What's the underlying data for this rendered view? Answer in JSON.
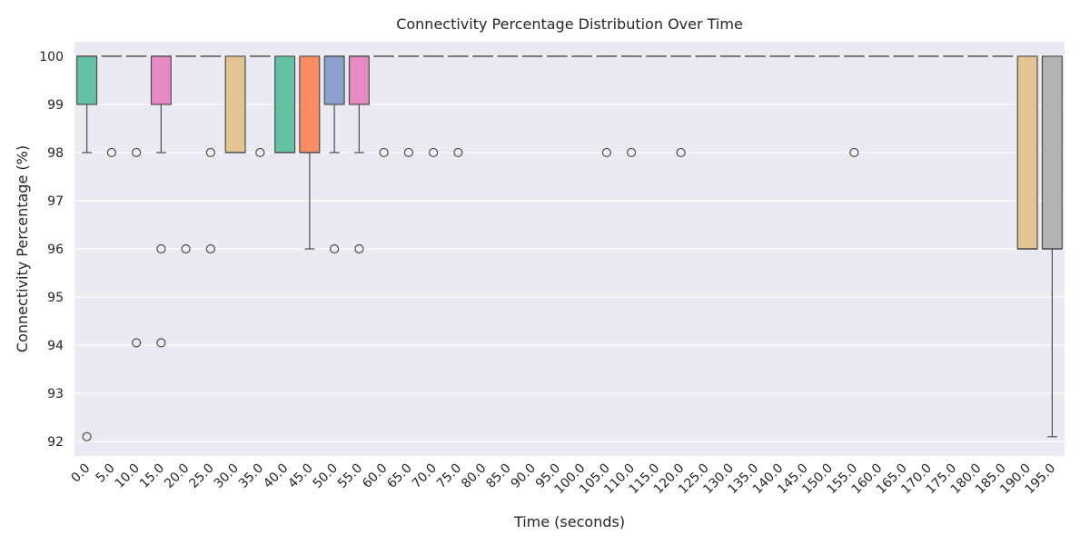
{
  "chart_data": {
    "type": "box",
    "title": "Connectivity Percentage Distribution Over Time",
    "xlabel": "Time (seconds)",
    "ylabel": "Connectivity Percentage (%)",
    "categories": [
      "0.0",
      "5.0",
      "10.0",
      "15.0",
      "20.0",
      "25.0",
      "30.0",
      "35.0",
      "40.0",
      "45.0",
      "50.0",
      "55.0",
      "60.0",
      "65.0",
      "70.0",
      "75.0",
      "80.0",
      "85.0",
      "90.0",
      "95.0",
      "100.0",
      "105.0",
      "110.0",
      "115.0",
      "120.0",
      "125.0",
      "130.0",
      "135.0",
      "140.0",
      "145.0",
      "150.0",
      "155.0",
      "160.0",
      "165.0",
      "170.0",
      "175.0",
      "180.0",
      "185.0",
      "190.0",
      "195.0"
    ],
    "ylim": [
      91.7,
      100.3
    ],
    "yticks": [
      92,
      93,
      94,
      95,
      96,
      97,
      98,
      99,
      100
    ],
    "grid": true,
    "palette": [
      "#66c2a5",
      "#fc8d62",
      "#8da0cb",
      "#e78ac3",
      "#a6d854",
      "#ffd92f",
      "#e5c494",
      "#b3b3b3"
    ],
    "boxes": [
      {
        "q1": 99,
        "median": 100,
        "q3": 100,
        "whislo": 98,
        "whishi": 100,
        "fliers": [
          92.1
        ]
      },
      {
        "q1": 100,
        "median": 100,
        "q3": 100,
        "whislo": 100,
        "whishi": 100,
        "fliers": [
          98
        ]
      },
      {
        "q1": 100,
        "median": 100,
        "q3": 100,
        "whislo": 100,
        "whishi": 100,
        "fliers": [
          98,
          94.05
        ]
      },
      {
        "q1": 99,
        "median": 100,
        "q3": 100,
        "whislo": 98,
        "whishi": 100,
        "fliers": [
          96,
          94.05
        ]
      },
      {
        "q1": 100,
        "median": 100,
        "q3": 100,
        "whislo": 100,
        "whishi": 100,
        "fliers": [
          96
        ]
      },
      {
        "q1": 100,
        "median": 100,
        "q3": 100,
        "whislo": 100,
        "whishi": 100,
        "fliers": [
          98,
          96
        ]
      },
      {
        "q1": 98,
        "median": 98,
        "q3": 100,
        "whislo": 98,
        "whishi": 100,
        "fliers": []
      },
      {
        "q1": 100,
        "median": 100,
        "q3": 100,
        "whislo": 100,
        "whishi": 100,
        "fliers": [
          98
        ]
      },
      {
        "q1": 98,
        "median": 98,
        "q3": 100,
        "whislo": 98,
        "whishi": 100,
        "fliers": []
      },
      {
        "q1": 98,
        "median": 98,
        "q3": 100,
        "whislo": 96,
        "whishi": 100,
        "fliers": []
      },
      {
        "q1": 99,
        "median": 100,
        "q3": 100,
        "whislo": 98,
        "whishi": 100,
        "fliers": [
          96
        ]
      },
      {
        "q1": 99,
        "median": 100,
        "q3": 100,
        "whislo": 98,
        "whishi": 100,
        "fliers": [
          96
        ]
      },
      {
        "q1": 100,
        "median": 100,
        "q3": 100,
        "whislo": 100,
        "whishi": 100,
        "fliers": [
          98
        ]
      },
      {
        "q1": 100,
        "median": 100,
        "q3": 100,
        "whislo": 100,
        "whishi": 100,
        "fliers": [
          98
        ]
      },
      {
        "q1": 100,
        "median": 100,
        "q3": 100,
        "whislo": 100,
        "whishi": 100,
        "fliers": [
          98
        ]
      },
      {
        "q1": 100,
        "median": 100,
        "q3": 100,
        "whislo": 100,
        "whishi": 100,
        "fliers": [
          98
        ]
      },
      {
        "q1": 100,
        "median": 100,
        "q3": 100,
        "whislo": 100,
        "whishi": 100,
        "fliers": []
      },
      {
        "q1": 100,
        "median": 100,
        "q3": 100,
        "whislo": 100,
        "whishi": 100,
        "fliers": []
      },
      {
        "q1": 100,
        "median": 100,
        "q3": 100,
        "whislo": 100,
        "whishi": 100,
        "fliers": []
      },
      {
        "q1": 100,
        "median": 100,
        "q3": 100,
        "whislo": 100,
        "whishi": 100,
        "fliers": []
      },
      {
        "q1": 100,
        "median": 100,
        "q3": 100,
        "whislo": 100,
        "whishi": 100,
        "fliers": []
      },
      {
        "q1": 100,
        "median": 100,
        "q3": 100,
        "whislo": 100,
        "whishi": 100,
        "fliers": [
          98
        ]
      },
      {
        "q1": 100,
        "median": 100,
        "q3": 100,
        "whislo": 100,
        "whishi": 100,
        "fliers": [
          98
        ]
      },
      {
        "q1": 100,
        "median": 100,
        "q3": 100,
        "whislo": 100,
        "whishi": 100,
        "fliers": []
      },
      {
        "q1": 100,
        "median": 100,
        "q3": 100,
        "whislo": 100,
        "whishi": 100,
        "fliers": [
          98
        ]
      },
      {
        "q1": 100,
        "median": 100,
        "q3": 100,
        "whislo": 100,
        "whishi": 100,
        "fliers": []
      },
      {
        "q1": 100,
        "median": 100,
        "q3": 100,
        "whislo": 100,
        "whishi": 100,
        "fliers": []
      },
      {
        "q1": 100,
        "median": 100,
        "q3": 100,
        "whislo": 100,
        "whishi": 100,
        "fliers": []
      },
      {
        "q1": 100,
        "median": 100,
        "q3": 100,
        "whislo": 100,
        "whishi": 100,
        "fliers": []
      },
      {
        "q1": 100,
        "median": 100,
        "q3": 100,
        "whislo": 100,
        "whishi": 100,
        "fliers": []
      },
      {
        "q1": 100,
        "median": 100,
        "q3": 100,
        "whislo": 100,
        "whishi": 100,
        "fliers": []
      },
      {
        "q1": 100,
        "median": 100,
        "q3": 100,
        "whislo": 100,
        "whishi": 100,
        "fliers": [
          98
        ]
      },
      {
        "q1": 100,
        "median": 100,
        "q3": 100,
        "whislo": 100,
        "whishi": 100,
        "fliers": []
      },
      {
        "q1": 100,
        "median": 100,
        "q3": 100,
        "whislo": 100,
        "whishi": 100,
        "fliers": []
      },
      {
        "q1": 100,
        "median": 100,
        "q3": 100,
        "whislo": 100,
        "whishi": 100,
        "fliers": []
      },
      {
        "q1": 100,
        "median": 100,
        "q3": 100,
        "whislo": 100,
        "whishi": 100,
        "fliers": []
      },
      {
        "q1": 100,
        "median": 100,
        "q3": 100,
        "whislo": 100,
        "whishi": 100,
        "fliers": []
      },
      {
        "q1": 100,
        "median": 100,
        "q3": 100,
        "whislo": 100,
        "whishi": 100,
        "fliers": []
      },
      {
        "q1": 96,
        "median": 96,
        "q3": 100,
        "whislo": 96,
        "whishi": 100,
        "fliers": []
      },
      {
        "q1": 96,
        "median": 96,
        "q3": 100,
        "whislo": 92.1,
        "whishi": 100,
        "fliers": []
      }
    ]
  }
}
